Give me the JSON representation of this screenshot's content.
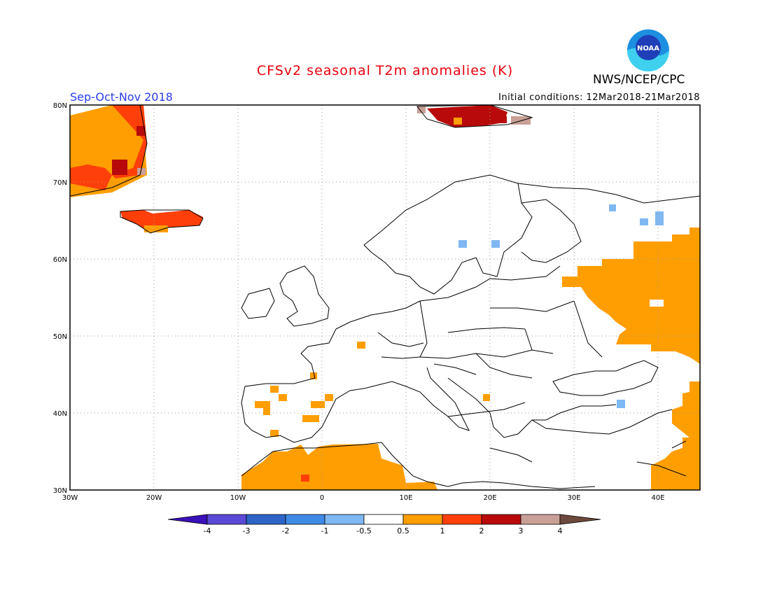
{
  "header": {
    "title": "CFSv2 seasonal T2m anomalies (K)",
    "period": "Sep-Oct-Nov 2018",
    "agency": "NWS/NCEP/CPC",
    "initial_conditions": "Initial conditions: 12Mar2018-21Mar2018"
  },
  "logo": {
    "text": "NOAA",
    "icon": "noaa-logo-icon"
  },
  "map": {
    "lat_labels": [
      "80N",
      "70N",
      "60N",
      "50N",
      "40N",
      "30N"
    ],
    "lon_labels": [
      "30W",
      "20W",
      "10W",
      "0",
      "10E",
      "20E",
      "30E",
      "40E"
    ]
  },
  "colorbar": {
    "labels": [
      "-4",
      "-3",
      "-2",
      "-1",
      "-0.5",
      "0.5",
      "1",
      "2",
      "3",
      "4"
    ],
    "colors": [
      "#3a10b8",
      "#5a4ad6",
      "#2d64c8",
      "#3f8ae6",
      "#7fb8f2",
      "#ffffff",
      "#ff9e00",
      "#ff3f0a",
      "#b80a0a",
      "#c9a097",
      "#6e4a3c"
    ]
  }
}
